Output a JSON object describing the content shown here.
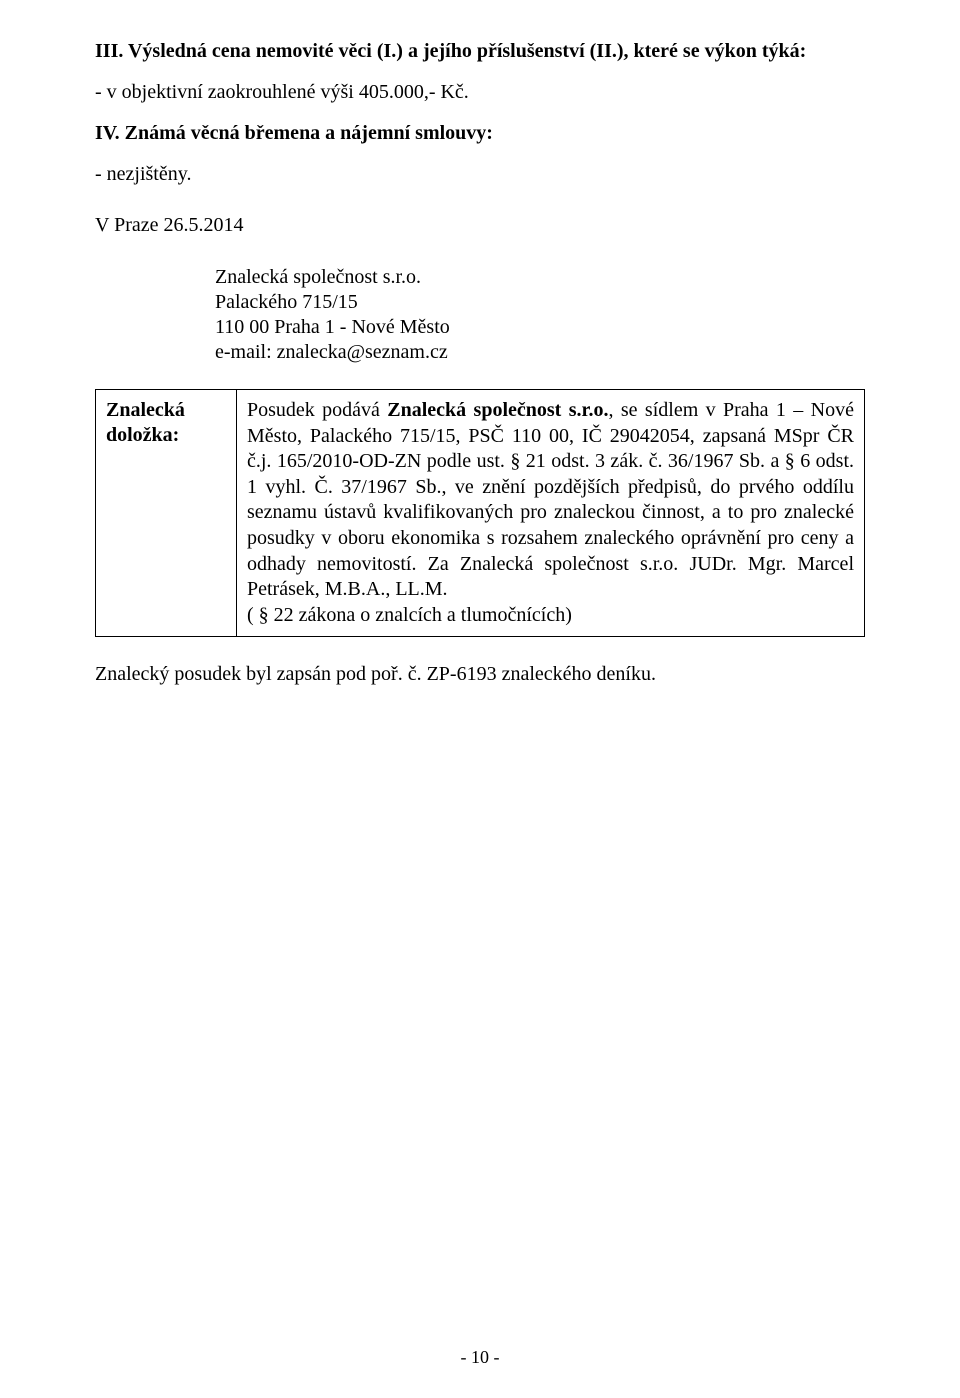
{
  "sectionIII": {
    "heading": "III. Výsledná cena nemovité věci (I.) a jejího příslušenství (II.), které se výkon týká:",
    "line": "- v objektivní zaokrouhlené výši 405.000,- Kč."
  },
  "sectionIV": {
    "heading": "IV. Známá věcná břemena a nájemní smlouvy:",
    "line": "- nezjištěny."
  },
  "dateLine": "V Praze 26.5.2014",
  "company": {
    "l1": "Znalecká společnost s.r.o.",
    "l2": "Palackého 715/15",
    "l3": "110 00 Praha 1 - Nové Město",
    "l4": "e-mail: znalecka@seznam.cz"
  },
  "clause": {
    "label1": "Znalecká",
    "label2": "doložka:",
    "t1": "Posudek podává ",
    "boldName": "Znalecká společnost s.r.o.",
    "t2": ", se sídlem v Praha 1 – Nové Město, Palackého 715/15, PSČ 110 00, IČ 29042054, zapsaná MSpr ČR č.j. 165/2010-OD-ZN podle ust. § 21 odst. 3 zák. č. 36/1967 Sb. a § 6 odst. 1 vyhl. Č. 37/1967 Sb., ve znění pozdějších předpisů, do prvého oddílu seznamu ústavů kvalifikovaných pro znaleckou činnost, a to pro znalecké posudky v oboru ekonomika s rozsahem znaleckého oprávnění pro ceny a odhady nemovitostí. Za Znalecká společnost s.r.o.  JUDr. Mgr. Marcel Petrásek, M.B.A., LL.M.",
    "t3": "( § 22 zákona o znalcích a tlumočnících)"
  },
  "closing": "Znalecký posudek byl zapsán pod poř. č. ZP-6193  znaleckého deníku.",
  "pageNumber": "- 10 -"
}
